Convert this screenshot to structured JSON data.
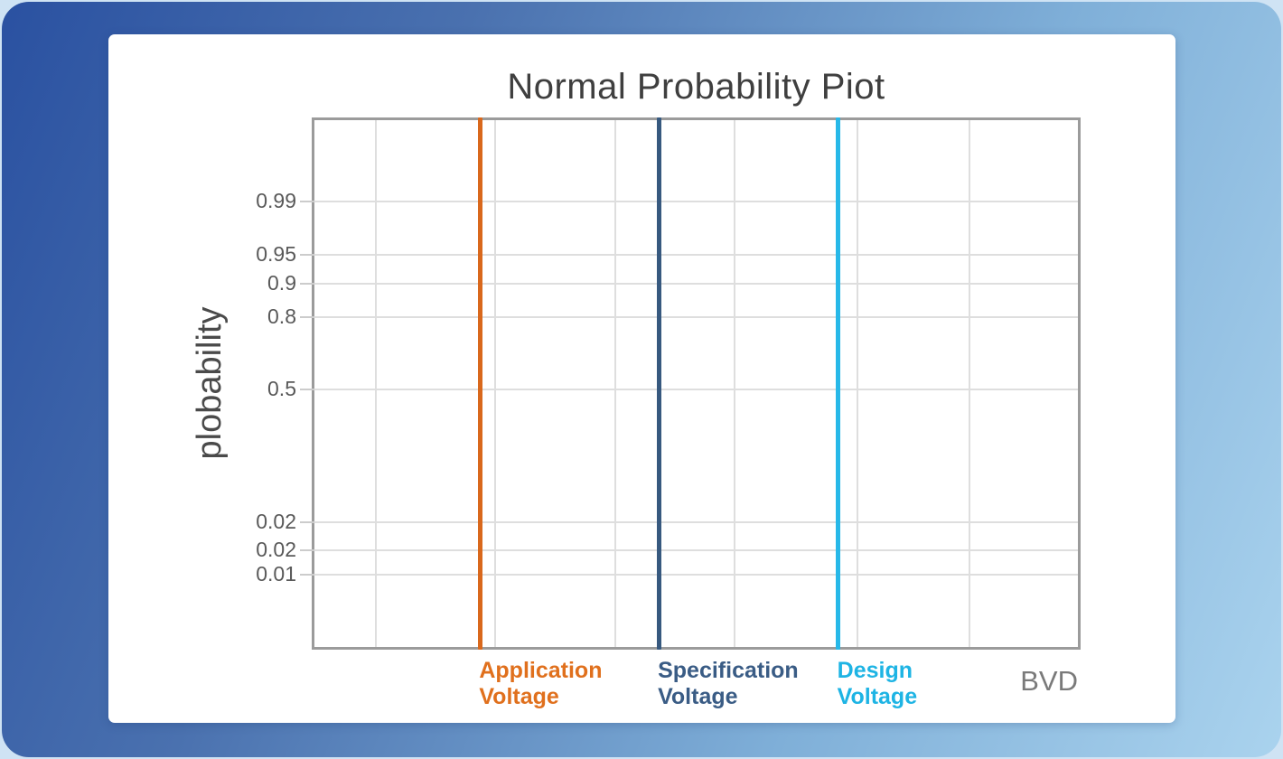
{
  "chart_data": {
    "type": "line",
    "subtype": "vertical-reference-lines-on-normal-probability-plot",
    "title": "Normal Probability Piot",
    "ylabel": "plobability",
    "xlabel": "BVD",
    "grid": true,
    "legend_position": "none",
    "y_axis": {
      "scale": "normal-probability",
      "ticks": [
        {
          "label": "0.99",
          "pos": 0.154
        },
        {
          "label": "0.95",
          "pos": 0.256
        },
        {
          "label": "0.9",
          "pos": 0.31
        },
        {
          "label": "0.8",
          "pos": 0.374
        },
        {
          "label": "0.5",
          "pos": 0.511
        },
        {
          "label": "0.02",
          "pos": 0.763
        },
        {
          "label": "0.02",
          "pos": 0.816
        },
        {
          "label": "0.01",
          "pos": 0.863
        }
      ]
    },
    "x_gridline_positions": [
      0.08,
      0.237,
      0.394,
      0.55,
      0.711,
      0.858
    ],
    "reference_lines": [
      {
        "name": "Application Voltage",
        "x_pos": 0.217,
        "line_color": "#D9681C",
        "label_color": "#E0701D"
      },
      {
        "name": "Specification Voltage",
        "x_pos": 0.451,
        "line_color": "#37597F",
        "label_color": "#3A5C85"
      },
      {
        "name": "Design Voltage",
        "x_pos": 0.686,
        "line_color": "#27B8E8",
        "label_color": "#1EB4E4"
      }
    ],
    "colors": {
      "grid": "#DEDEDE",
      "axis_border": "#9B9B9B",
      "title_text": "#3F3F3F",
      "tick_text": "#595959",
      "xlabel_text": "#7A7A7A",
      "background_gradient_start": "#2A51A1",
      "background_gradient_end": "#AAD3EE",
      "card_background": "#FFFFFF"
    }
  }
}
